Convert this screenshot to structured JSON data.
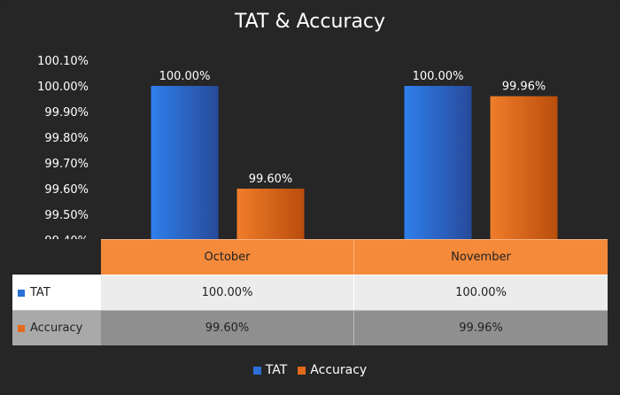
{
  "colors": {
    "tat": "#2a6ed6",
    "accuracy": "#e36a1a",
    "background": "#262626",
    "header_row": "#f58a3b"
  },
  "chart_data": {
    "type": "bar",
    "title": "TAT & Accuracy",
    "categories": [
      "October",
      "November"
    ],
    "series": [
      {
        "name": "TAT",
        "values": [
          100.0,
          100.0
        ],
        "labels": [
          "100.00%",
          "100.00%"
        ]
      },
      {
        "name": "Accuracy",
        "values": [
          99.6,
          99.96
        ],
        "labels": [
          "99.60%",
          "99.96%"
        ]
      }
    ],
    "ylim": [
      99.4,
      100.1
    ],
    "yticks": [
      "100.10%",
      "100.00%",
      "99.90%",
      "99.80%",
      "99.70%",
      "99.60%",
      "99.50%",
      "99.40%"
    ],
    "ytick_values": [
      100.1,
      100.0,
      99.9,
      99.8,
      99.7,
      99.6,
      99.5,
      99.4
    ],
    "grid": false,
    "legend": "bottom",
    "data_table": {
      "header": [
        "October",
        "November"
      ],
      "rows": [
        {
          "name": "TAT",
          "cells": [
            "100.00%",
            "100.00%"
          ]
        },
        {
          "name": "Accuracy",
          "cells": [
            "99.60%",
            "99.96%"
          ]
        }
      ]
    }
  }
}
